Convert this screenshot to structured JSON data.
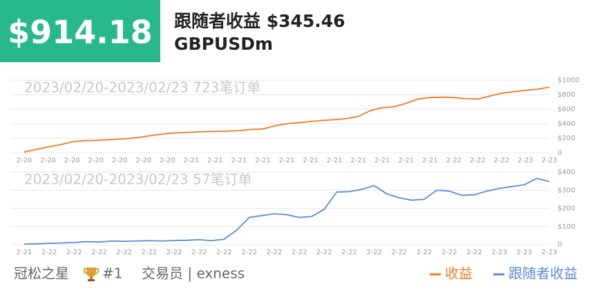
{
  "header": {
    "amount": "$914.18",
    "title": "跟随者收益 $345.46",
    "symbol": "GBPUSDm"
  },
  "chart_data": [
    {
      "type": "line",
      "title": "2023/02/20-2023/02/23 723笔订单",
      "categories": [
        "2-20",
        null,
        "2-20",
        null,
        "2-20",
        null,
        "2-20",
        null,
        "2-20",
        null,
        "2-20",
        null,
        "2-20",
        null,
        "2-21",
        null,
        "2-21",
        null,
        "2-21",
        null,
        "2-21",
        null,
        "2-21",
        null,
        "2-21",
        null,
        "2-21",
        null,
        "2-21",
        null,
        "2-21",
        null,
        "2-21",
        null,
        "2-21",
        null,
        "2-22",
        null,
        "2-22",
        null,
        "2-22",
        null,
        "2-23",
        null,
        "2-23"
      ],
      "series": [
        {
          "name": "收益",
          "color": "#f07b1f",
          "values": [
            10,
            45,
            80,
            110,
            150,
            165,
            170,
            178,
            188,
            200,
            220,
            245,
            265,
            275,
            282,
            290,
            293,
            297,
            305,
            320,
            328,
            370,
            400,
            415,
            430,
            445,
            455,
            470,
            500,
            580,
            620,
            635,
            680,
            740,
            760,
            765,
            760,
            745,
            740,
            780,
            820,
            840,
            860,
            875,
            905
          ]
        }
      ],
      "ylim": [
        0,
        1000
      ],
      "yticks": [
        0,
        {
          "value": 200,
          "label": "$200"
        },
        {
          "value": 400,
          "label": "$400"
        },
        {
          "value": 600,
          "label": "$600"
        },
        {
          "value": 800,
          "label": "$800"
        },
        {
          "value": 1000,
          "label": "$1000"
        }
      ],
      "grid": true
    },
    {
      "type": "line",
      "title": "2023/02/20-2023/02/23 57笔订单",
      "categories": [
        "2-21",
        null,
        "2-22",
        null,
        "2-22",
        null,
        "2-22",
        null,
        "2-22",
        null,
        "2-22",
        null,
        "2-22",
        null,
        "2-22",
        null,
        "2-22",
        null,
        "2-22",
        null,
        "2-22",
        null,
        "2-22",
        null,
        "2-22",
        null,
        "2-22",
        null,
        "2-22",
        null,
        "2-22",
        null,
        "2-22",
        null,
        "2-22",
        null,
        "2-22",
        null,
        "2-23",
        null,
        "2-23",
        null,
        "2-23"
      ],
      "series": [
        {
          "name": "跟随者收益",
          "color": "#5b8ad8",
          "values": [
            3,
            5,
            7,
            9,
            12,
            16,
            14,
            20,
            18,
            20,
            22,
            20,
            23,
            24,
            27,
            22,
            30,
            80,
            150,
            160,
            170,
            165,
            150,
            155,
            195,
            290,
            292,
            305,
            325,
            280,
            258,
            245,
            250,
            300,
            295,
            272,
            275,
            295,
            310,
            320,
            330,
            365,
            348
          ]
        }
      ],
      "ylim": [
        0,
        400
      ],
      "yticks": [
        0,
        {
          "value": 100,
          "label": "$100"
        },
        {
          "value": 200,
          "label": "$200"
        },
        {
          "value": 300,
          "label": "$300"
        },
        {
          "value": 400,
          "label": "$400"
        }
      ],
      "grid": true
    }
  ],
  "footer": {
    "name": "冠松之星",
    "rank": "#1",
    "role": "交易员 | exness"
  }
}
